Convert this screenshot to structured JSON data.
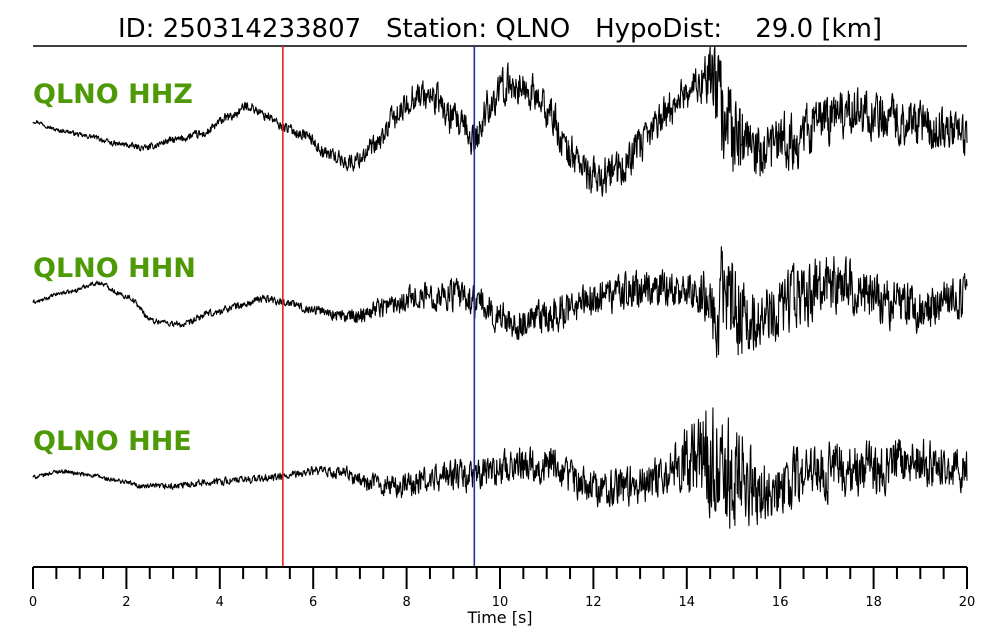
{
  "header": {
    "title": "ID: 250314233807   Station: QLNO   HypoDist:    29.0 [km]"
  },
  "colors": {
    "trace_label": "#4e9a06",
    "trace_line": "#000000",
    "p_pick": "#e8221b",
    "s_pick": "#1f2f9e",
    "axis": "#000000"
  },
  "chart_data": {
    "type": "line",
    "title": "ID: 250314233807   Station: QLNO   HypoDist:    29.0 [km]",
    "xlabel": "Time [s]",
    "ylabel": "",
    "xlim": [
      0,
      20
    ],
    "x_major_ticks": [
      0,
      2,
      4,
      6,
      8,
      10,
      12,
      14,
      16,
      18,
      20
    ],
    "x_tick_labels": [
      "0",
      "2",
      "4",
      "6",
      "8",
      "10",
      "12",
      "14",
      "16",
      "18",
      "20"
    ],
    "x_minor_tick_step": 0.5,
    "grid": false,
    "picks": [
      {
        "phase": "P",
        "time": 5.35,
        "color": "#e8221b"
      },
      {
        "phase": "S",
        "time": 9.45,
        "color": "#1f2f9e"
      }
    ],
    "series": [
      {
        "name": "QLNO HHZ",
        "envelope": [
          {
            "t": 0.0,
            "v": 0.1
          },
          {
            "t": 5.35,
            "v": 0.25
          },
          {
            "t": 9.45,
            "v": 0.9
          },
          {
            "t": 14.2,
            "v": 1.0
          },
          {
            "t": 14.9,
            "v": 2.6
          },
          {
            "t": 15.4,
            "v": 1.5
          },
          {
            "t": 20.0,
            "v": 1.1
          }
        ],
        "x": [
          0,
          0.6,
          1.2,
          1.8,
          2.4,
          3.0,
          3.6,
          4.2,
          4.6,
          5.0,
          5.35,
          5.8,
          6.3,
          6.8,
          7.3,
          7.8,
          8.2,
          8.6,
          9.0,
          9.45,
          9.8,
          10.2,
          10.6,
          11.0,
          11.5,
          12.0,
          12.5,
          13.0,
          13.5,
          14.0,
          14.5,
          14.8,
          15.2,
          15.6,
          16.0,
          16.5,
          17.0,
          17.5,
          18.0,
          18.5,
          19.0,
          19.5,
          20.0
        ],
        "y": [
          0.2,
          -0.3,
          -0.6,
          -1.0,
          -1.2,
          -0.8,
          -0.5,
          0.4,
          1.0,
          0.5,
          -0.1,
          -0.5,
          -1.5,
          -2.0,
          -1.2,
          0.5,
          1.6,
          1.4,
          0.2,
          -0.8,
          1.2,
          2.2,
          1.8,
          0.8,
          -1.5,
          -2.8,
          -2.5,
          -1.2,
          0.5,
          1.8,
          2.5,
          0.8,
          -1.0,
          -1.8,
          -1.0,
          -0.5,
          0.3,
          0.8,
          0.6,
          0.3,
          0.0,
          -0.2,
          -0.6
        ]
      },
      {
        "name": "QLNO HHN",
        "envelope": [
          {
            "t": 0.0,
            "v": 0.1
          },
          {
            "t": 5.35,
            "v": 0.2
          },
          {
            "t": 9.45,
            "v": 0.8
          },
          {
            "t": 14.2,
            "v": 1.0
          },
          {
            "t": 14.8,
            "v": 2.8
          },
          {
            "t": 15.6,
            "v": 1.6
          },
          {
            "t": 20.0,
            "v": 1.1
          }
        ],
        "x": [
          0,
          0.7,
          1.4,
          2.0,
          2.6,
          3.2,
          3.8,
          4.4,
          5.0,
          5.35,
          6.0,
          6.8,
          7.5,
          8.2,
          9.0,
          9.45,
          10.0,
          10.5,
          11.0,
          11.5,
          12.0,
          12.5,
          13.0,
          13.5,
          14.0,
          14.5,
          15.0,
          15.5,
          16.0,
          16.5,
          17.0,
          17.5,
          18.0,
          18.5,
          19.0,
          19.5,
          20.0
        ],
        "y": [
          0.0,
          0.5,
          1.0,
          0.3,
          -1.0,
          -1.2,
          -0.6,
          -0.2,
          0.2,
          0.0,
          -0.4,
          -0.8,
          -0.2,
          0.3,
          0.4,
          0.0,
          -0.8,
          -1.2,
          -0.8,
          -0.4,
          0.2,
          0.5,
          0.6,
          0.8,
          0.6,
          0.2,
          -0.5,
          -0.6,
          -0.4,
          0.4,
          1.0,
          0.8,
          0.3,
          -0.2,
          -0.3,
          0.0,
          0.2
        ]
      },
      {
        "name": "QLNO HHE",
        "envelope": [
          {
            "t": 0.0,
            "v": 0.1
          },
          {
            "t": 5.35,
            "v": 0.2
          },
          {
            "t": 9.45,
            "v": 0.8
          },
          {
            "t": 13.5,
            "v": 1.0
          },
          {
            "t": 14.8,
            "v": 3.0
          },
          {
            "t": 15.8,
            "v": 1.5
          },
          {
            "t": 20.0,
            "v": 1.1
          }
        ],
        "x": [
          0,
          0.6,
          1.2,
          1.8,
          2.4,
          3.0,
          3.6,
          4.2,
          4.8,
          5.35,
          6.0,
          6.6,
          7.2,
          7.8,
          8.4,
          9.0,
          9.45,
          10.0,
          10.5,
          11.0,
          11.5,
          12.0,
          12.5,
          13.0,
          13.5,
          14.0,
          14.5,
          15.0,
          15.5,
          16.0,
          16.5,
          17.0,
          17.5,
          18.0,
          18.5,
          19.0,
          19.5,
          20.0
        ],
        "y": [
          0.0,
          0.3,
          0.1,
          -0.2,
          -0.5,
          -0.5,
          -0.3,
          -0.2,
          -0.1,
          0.0,
          0.3,
          0.2,
          -0.3,
          -0.5,
          -0.2,
          0.1,
          0.0,
          0.5,
          0.8,
          0.6,
          0.0,
          -0.5,
          -0.6,
          -0.4,
          0.3,
          1.0,
          0.8,
          0.0,
          -0.6,
          -0.5,
          0.0,
          0.3,
          0.5,
          0.4,
          0.8,
          0.9,
          0.5,
          0.2
        ]
      }
    ]
  }
}
